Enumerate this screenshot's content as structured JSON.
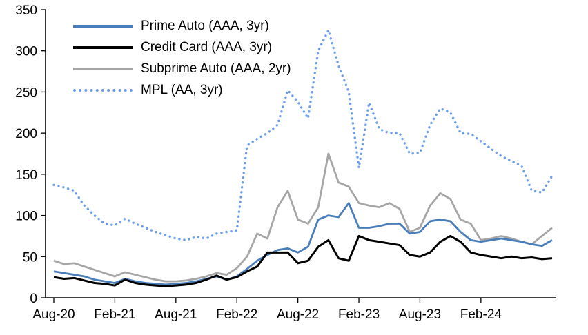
{
  "chart_data": {
    "type": "line",
    "title": "",
    "xlabel": "",
    "ylabel": "",
    "ylim": [
      0,
      350
    ],
    "y_ticks": [
      0,
      50,
      100,
      150,
      200,
      250,
      300,
      350
    ],
    "x_tick_labels": [
      "Aug-20",
      "Feb-21",
      "Aug-21",
      "Feb-22",
      "Aug-22",
      "Feb-23",
      "Aug-23",
      "Feb-24"
    ],
    "x_tick_indices": [
      0,
      6,
      12,
      18,
      24,
      30,
      36,
      42
    ],
    "n_points": 50,
    "grid": false,
    "legend_position": "top-left",
    "series": [
      {
        "name": "Prime Auto (AAA, 3yr)",
        "color": "#4A7EBB",
        "style": "solid",
        "values": [
          32,
          30,
          28,
          26,
          22,
          20,
          18,
          23,
          20,
          18,
          17,
          16,
          17,
          18,
          20,
          23,
          26,
          22,
          26,
          35,
          45,
          52,
          58,
          60,
          55,
          62,
          95,
          100,
          98,
          115,
          85,
          85,
          87,
          90,
          90,
          78,
          80,
          93,
          95,
          93,
          80,
          70,
          68,
          70,
          72,
          70,
          68,
          65,
          63,
          70
        ]
      },
      {
        "name": "Credit Card (AAA, 3yr)",
        "color": "#000000",
        "style": "solid",
        "values": [
          25,
          23,
          24,
          21,
          18,
          17,
          15,
          22,
          18,
          16,
          15,
          14,
          15,
          16,
          18,
          22,
          27,
          22,
          25,
          32,
          38,
          55,
          55,
          55,
          42,
          45,
          62,
          70,
          48,
          45,
          75,
          70,
          68,
          66,
          64,
          52,
          50,
          55,
          68,
          75,
          68,
          55,
          52,
          50,
          48,
          50,
          48,
          49,
          47,
          48
        ]
      },
      {
        "name": "Subprime Auto (AAA, 2yr)",
        "color": "#A6A6A6",
        "style": "solid",
        "values": [
          45,
          41,
          42,
          38,
          34,
          30,
          26,
          31,
          28,
          25,
          22,
          20,
          20,
          21,
          23,
          26,
          30,
          28,
          36,
          50,
          78,
          72,
          110,
          130,
          95,
          90,
          110,
          175,
          140,
          135,
          115,
          112,
          110,
          115,
          108,
          80,
          85,
          112,
          127,
          120,
          95,
          90,
          70,
          72,
          75,
          72,
          68,
          65,
          75,
          85
        ]
      },
      {
        "name": "MPL (AA, 3yr)",
        "color": "#6D9EEB",
        "style": "dotted",
        "values": [
          137,
          134,
          130,
          112,
          100,
          90,
          88,
          96,
          90,
          85,
          80,
          76,
          72,
          70,
          74,
          72,
          78,
          80,
          82,
          185,
          193,
          200,
          210,
          252,
          238,
          218,
          300,
          325,
          282,
          250,
          158,
          237,
          205,
          200,
          200,
          175,
          176,
          210,
          230,
          225,
          200,
          199,
          190,
          181,
          172,
          166,
          160,
          130,
          128,
          148
        ]
      }
    ]
  }
}
